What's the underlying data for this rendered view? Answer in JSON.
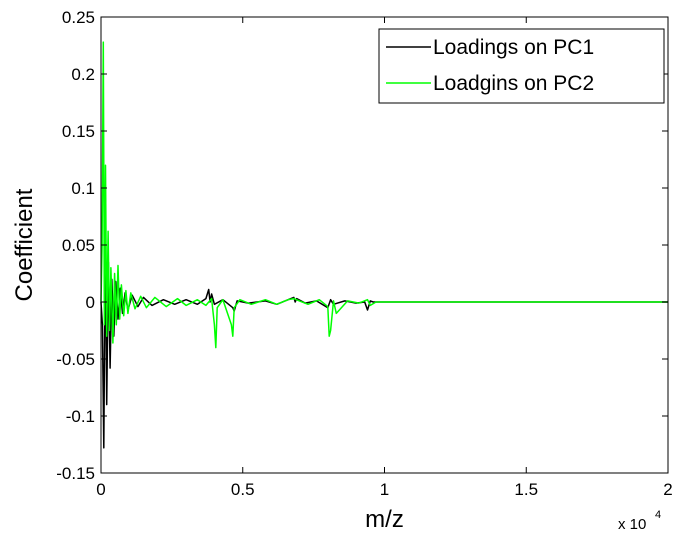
{
  "chart_data": {
    "type": "line",
    "xlabel": "m/z",
    "ylabel": "Coefficient",
    "x_multiplier": {
      "base": "x 10",
      "exponent": "4"
    },
    "xlim": [
      0,
      20000
    ],
    "ylim": [
      -0.15,
      0.25
    ],
    "x_ticks": [
      {
        "value": 0,
        "label": "0"
      },
      {
        "value": 5000,
        "label": "0.5"
      },
      {
        "value": 10000,
        "label": "1"
      },
      {
        "value": 15000,
        "label": "1.5"
      },
      {
        "value": 20000,
        "label": "2"
      }
    ],
    "y_ticks": [
      {
        "value": -0.15,
        "label": "-0.15"
      },
      {
        "value": -0.1,
        "label": "-0.1"
      },
      {
        "value": -0.05,
        "label": "-0.05"
      },
      {
        "value": 0,
        "label": "0"
      },
      {
        "value": 0.05,
        "label": "0.05"
      },
      {
        "value": 0.1,
        "label": "0.1"
      },
      {
        "value": 0.15,
        "label": "0.15"
      },
      {
        "value": 0.2,
        "label": "0.2"
      },
      {
        "value": 0.25,
        "label": "0.25"
      }
    ],
    "grid": false,
    "legend_position": "top-right",
    "series": [
      {
        "name": "Loadings on PC1",
        "color": "#000000",
        "x": [
          0,
          50,
          100,
          150,
          200,
          260,
          320,
          380,
          450,
          520,
          600,
          680,
          760,
          850,
          950,
          1100,
          1300,
          1500,
          1800,
          2200,
          2600,
          3000,
          3400,
          3700,
          3800,
          3850,
          3900,
          4000,
          4300,
          4650,
          4700,
          4800,
          5200,
          5800,
          6200,
          6600,
          6800,
          6850,
          6900,
          7200,
          7600,
          8000,
          8100,
          8200,
          8600,
          9000,
          9300,
          9400,
          9500,
          9600,
          10000,
          12000,
          15000,
          17500,
          20000
        ],
        "y": [
          0.0,
          -0.02,
          -0.128,
          0.06,
          -0.09,
          0.035,
          -0.058,
          0.02,
          -0.03,
          0.018,
          -0.015,
          0.012,
          -0.01,
          0.008,
          -0.007,
          0.006,
          -0.004,
          0.004,
          -0.003,
          0.002,
          -0.002,
          0.002,
          -0.002,
          0.003,
          0.011,
          0.0,
          0.007,
          -0.002,
          0.002,
          -0.005,
          -0.008,
          0.001,
          -0.001,
          0.001,
          -0.002,
          0.002,
          0.004,
          0.0,
          0.003,
          -0.001,
          0.001,
          -0.005,
          0.002,
          -0.002,
          0.001,
          -0.001,
          0.0,
          -0.007,
          0.001,
          0.0,
          0.0,
          0.0,
          0.0,
          0.0,
          0.0
        ]
      },
      {
        "name": "Loadgins on PC2",
        "color": "#00ff00",
        "x": [
          0,
          40,
          80,
          120,
          160,
          200,
          250,
          300,
          350,
          420,
          480,
          540,
          600,
          660,
          720,
          800,
          880,
          950,
          1050,
          1200,
          1400,
          1600,
          1900,
          2300,
          2700,
          3000,
          3400,
          3700,
          3900,
          4000,
          4050,
          4100,
          4300,
          4600,
          4650,
          4700,
          4900,
          5300,
          5800,
          6200,
          6600,
          6800,
          7000,
          7300,
          7700,
          8000,
          8050,
          8100,
          8200,
          8300,
          8700,
          9100,
          9400,
          9500,
          9700,
          10000,
          12000,
          15000,
          17500,
          20000
        ],
        "y": [
          0.0,
          0.05,
          0.228,
          -0.02,
          0.12,
          -0.03,
          0.062,
          -0.025,
          0.03,
          -0.036,
          0.025,
          -0.02,
          0.032,
          -0.015,
          0.015,
          -0.012,
          0.01,
          -0.01,
          0.008,
          -0.006,
          0.005,
          -0.005,
          0.004,
          -0.004,
          0.003,
          -0.003,
          0.002,
          -0.003,
          0.003,
          -0.02,
          -0.04,
          -0.005,
          0.002,
          -0.02,
          -0.03,
          -0.005,
          0.002,
          -0.002,
          0.002,
          -0.002,
          0.002,
          0.003,
          0.001,
          -0.002,
          0.002,
          -0.004,
          -0.03,
          -0.025,
          0.001,
          -0.01,
          0.001,
          -0.001,
          0.002,
          -0.003,
          0.0,
          0.0,
          0.0,
          0.0,
          0.0,
          0.0
        ]
      }
    ]
  }
}
